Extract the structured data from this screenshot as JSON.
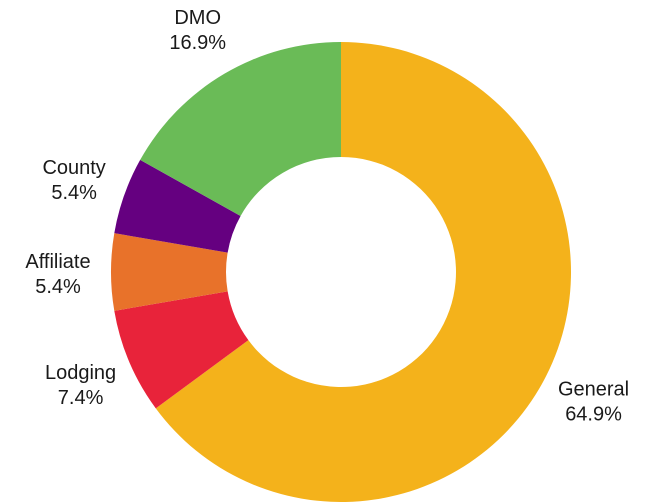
{
  "chart_data": {
    "type": "pie",
    "variant": "donut",
    "title": "",
    "slices": [
      {
        "label": "General",
        "value": 64.9,
        "display": "64.9%",
        "color": "#F4B21B"
      },
      {
        "label": "Lodging",
        "value": 7.4,
        "display": "7.4%",
        "color": "#E8233A"
      },
      {
        "label": "Affiliate",
        "value": 5.4,
        "display": "5.4%",
        "color": "#E8722A"
      },
      {
        "label": "County",
        "value": 5.4,
        "display": "5.4%",
        "color": "#650080"
      },
      {
        "label": "DMO",
        "value": 16.9,
        "display": "16.9%",
        "color": "#6ABB57"
      }
    ],
    "start_angle_deg": 0,
    "direction": "clockwise",
    "legend": "none"
  }
}
